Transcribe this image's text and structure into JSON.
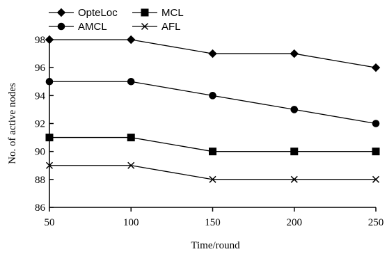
{
  "chart_data": {
    "type": "line",
    "title": "",
    "xlabel": "Time/round",
    "ylabel": "No. of active nodes",
    "x": [
      50,
      100,
      150,
      200,
      250
    ],
    "xlim": [
      50,
      250
    ],
    "ylim": [
      86,
      98
    ],
    "xticks": [
      50,
      100,
      150,
      200,
      250
    ],
    "yticks": [
      86,
      88,
      90,
      92,
      94,
      96,
      98
    ],
    "grid": false,
    "legend_position": "top-left",
    "series": [
      {
        "name": "OpteLoc",
        "marker": "diamond",
        "values": [
          98,
          98,
          97,
          97,
          96
        ]
      },
      {
        "name": "AMCL",
        "marker": "circle",
        "values": [
          95,
          95,
          94,
          93,
          92
        ]
      },
      {
        "name": "MCL",
        "marker": "square",
        "values": [
          91,
          91,
          90,
          90,
          90
        ]
      },
      {
        "name": "AFL",
        "marker": "x",
        "values": [
          89,
          89,
          88,
          88,
          88
        ]
      }
    ]
  }
}
